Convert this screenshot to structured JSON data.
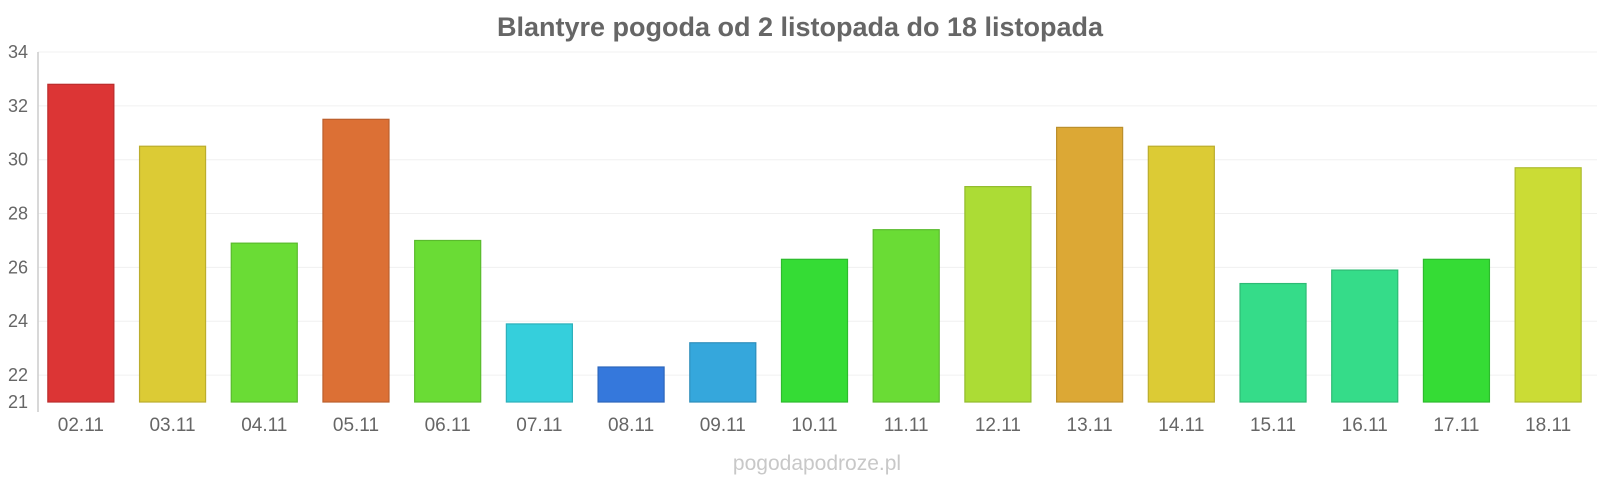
{
  "chart_data": {
    "type": "bar",
    "title": "Blantyre pogoda od 2 listopada do 18 listopada",
    "categories": [
      "02.11",
      "03.11",
      "04.11",
      "05.11",
      "06.11",
      "07.11",
      "08.11",
      "09.11",
      "10.11",
      "11.11",
      "12.11",
      "13.11",
      "14.11",
      "15.11",
      "16.11",
      "17.11",
      "18.11"
    ],
    "values": [
      32.8,
      30.5,
      26.9,
      31.5,
      27.0,
      23.9,
      22.3,
      23.2,
      26.3,
      27.4,
      29.0,
      31.2,
      30.5,
      25.4,
      25.9,
      26.3,
      29.7
    ],
    "colors": [
      "#dc3535",
      "#dccb35",
      "#6adc35",
      "#dc7035",
      "#6adc35",
      "#35cfdc",
      "#3578dc",
      "#35a7dc",
      "#35dc35",
      "#6adc35",
      "#acdc35",
      "#dca835",
      "#dccb35",
      "#35dc89",
      "#35dc89",
      "#35dc35",
      "#cbdc35"
    ],
    "ylim": [
      21,
      34
    ],
    "yticks": [
      21,
      22,
      24,
      26,
      28,
      30,
      32,
      34
    ],
    "xlabel": "",
    "ylabel": "",
    "grid": true
  },
  "footer": {
    "credit": "pogodapodroze.pl"
  }
}
